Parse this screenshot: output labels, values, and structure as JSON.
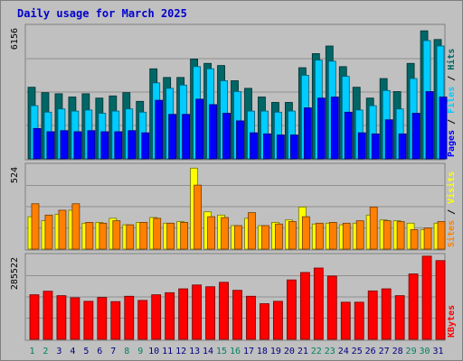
{
  "chart_data": {
    "title": "Daily usage for March 2025",
    "type": "bar",
    "days": [
      "1",
      "2",
      "3",
      "4",
      "5",
      "6",
      "7",
      "8",
      "9",
      "10",
      "11",
      "12",
      "13",
      "14",
      "15",
      "16",
      "17",
      "18",
      "19",
      "20",
      "21",
      "22",
      "23",
      "24",
      "25",
      "26",
      "27",
      "28",
      "29",
      "30",
      "31"
    ],
    "weekend_days": [
      1,
      2,
      8,
      9,
      15,
      16,
      22,
      23,
      29,
      30
    ],
    "panels": [
      {
        "max_label": "6156",
        "ymax": 6156,
        "series": [
          {
            "name": "Hits",
            "color": "#006666",
            "values": [
              3300,
              3050,
              3000,
              2850,
              3000,
              2800,
              2900,
              3050,
              2650,
              4150,
              3750,
              3750,
              4600,
              4400,
              4300,
              3600,
              3250,
              2850,
              2600,
              2600,
              4200,
              4850,
              5200,
              4250,
              3300,
              2800,
              3700,
              3100,
              4400,
              5900,
              5500
            ]
          },
          {
            "name": "Files",
            "color": "#00ccff",
            "values": [
              2450,
              2150,
              2300,
              2200,
              2250,
              2100,
              2200,
              2300,
              2150,
              3500,
              3250,
              3400,
              4250,
              4150,
              3600,
              3100,
              2200,
              2200,
              2150,
              2200,
              3850,
              4550,
              4500,
              3800,
              2250,
              2450,
              3150,
              2300,
              3700,
              5450,
              5200
            ]
          },
          {
            "name": "Pages",
            "color": "#0000ff",
            "values": [
              1400,
              1250,
              1300,
              1250,
              1300,
              1250,
              1250,
              1300,
              1200,
              2700,
              2050,
              2050,
              2750,
              2500,
              2100,
              1750,
              1200,
              1150,
              1100,
              1100,
              2350,
              2800,
              2850,
              2150,
              1200,
              1150,
              1800,
              1150,
              2100,
              3100,
              2850
            ]
          }
        ]
      },
      {
        "max_label": "524",
        "ymax": 524,
        "series": [
          {
            "name": "Visits",
            "color": "#ffff00",
            "values": [
              200,
              175,
              215,
              240,
              160,
              165,
              190,
              150,
              165,
              195,
              160,
              170,
              500,
              230,
              210,
              145,
              190,
              145,
              165,
              180,
              260,
              155,
              160,
              150,
              160,
              210,
              180,
              175,
              160,
              120,
              160
            ]
          },
          {
            "name": "Sites",
            "color": "#ff8000",
            "values": [
              280,
              210,
              240,
              280,
              165,
              160,
              175,
              150,
              165,
              190,
              160,
              165,
              395,
              200,
              195,
              145,
              225,
              145,
              155,
              170,
              200,
              160,
              165,
              160,
              175,
              260,
              175,
              170,
              120,
              130,
              170
            ]
          }
        ]
      },
      {
        "max_label": "285522",
        "ymax": 285522,
        "series": [
          {
            "name": "KBytes",
            "color": "#ff0000",
            "values": [
              150000,
              162000,
              147000,
              140000,
              128000,
              141000,
              127000,
              145000,
              131000,
              150000,
              157000,
              170000,
              183000,
              177000,
              192000,
              165000,
              145000,
              120000,
              128000,
              200000,
              225000,
              240000,
              213000,
              125000,
              125000,
              163000,
              170000,
              147000,
              220000,
              280000,
              265000
            ]
          }
        ]
      }
    ]
  }
}
